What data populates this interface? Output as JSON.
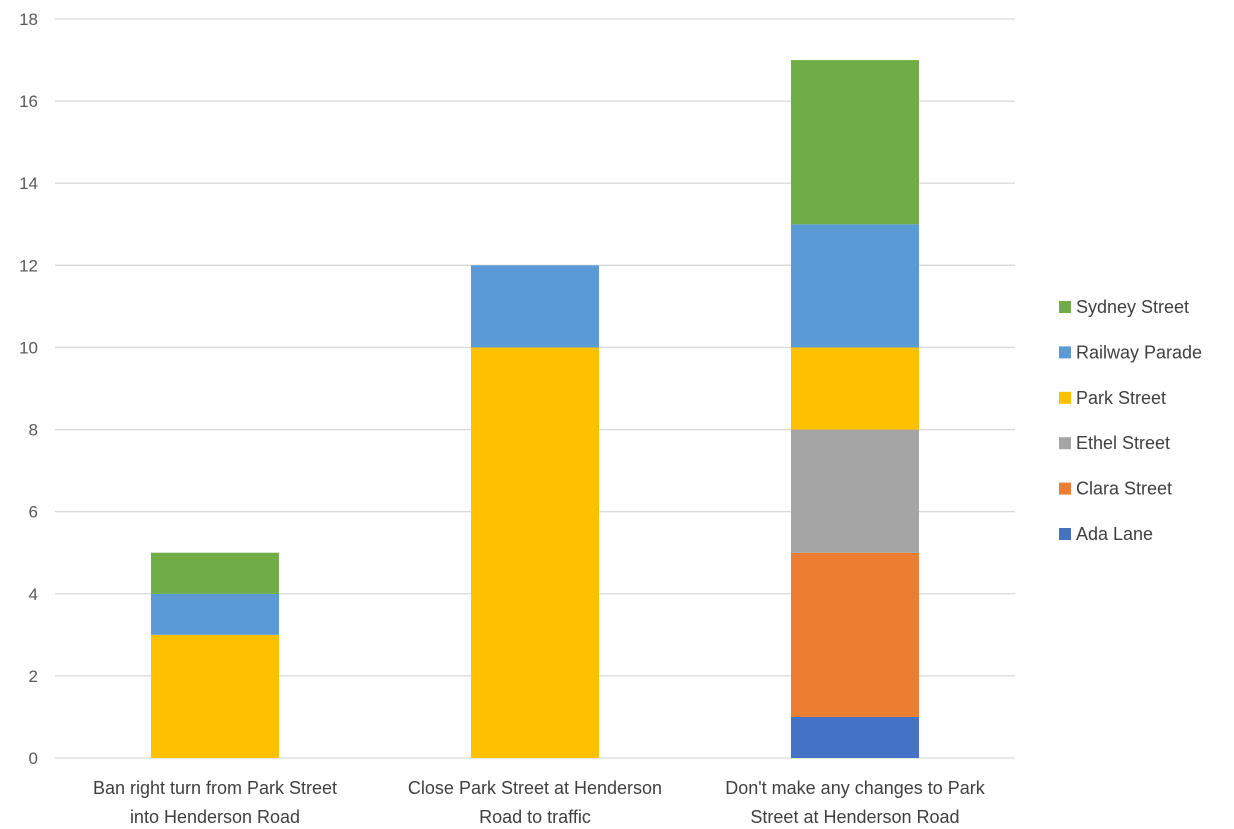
{
  "chart_data": {
    "type": "bar",
    "stacked": true,
    "title": "",
    "xlabel": "",
    "ylabel": "",
    "ylim": [
      0,
      18
    ],
    "yticks": [
      0,
      2,
      4,
      6,
      8,
      10,
      12,
      14,
      16,
      18
    ],
    "grid": true,
    "legend_position": "right",
    "categories": [
      [
        "Ban right turn from Park Street",
        "into Henderson Road"
      ],
      [
        "Close Park Street at Henderson",
        "Road to traffic"
      ],
      [
        "Don't make any changes to Park",
        "Street at Henderson Road"
      ]
    ],
    "series": [
      {
        "name": "Ada Lane",
        "color": "#4472c4",
        "values": [
          0,
          0,
          1
        ]
      },
      {
        "name": "Clara Street",
        "color": "#ed7d31",
        "values": [
          0,
          0,
          4
        ]
      },
      {
        "name": "Ethel Street",
        "color": "#a5a5a5",
        "values": [
          0,
          0,
          3
        ]
      },
      {
        "name": "Park Street",
        "color": "#ffc000",
        "values": [
          3,
          10,
          2
        ]
      },
      {
        "name": "Railway Parade",
        "color": "#5b9bd5",
        "values": [
          1,
          2,
          3
        ]
      },
      {
        "name": "Sydney Street",
        "color": "#70ad47",
        "values": [
          1,
          0,
          4
        ]
      }
    ]
  }
}
